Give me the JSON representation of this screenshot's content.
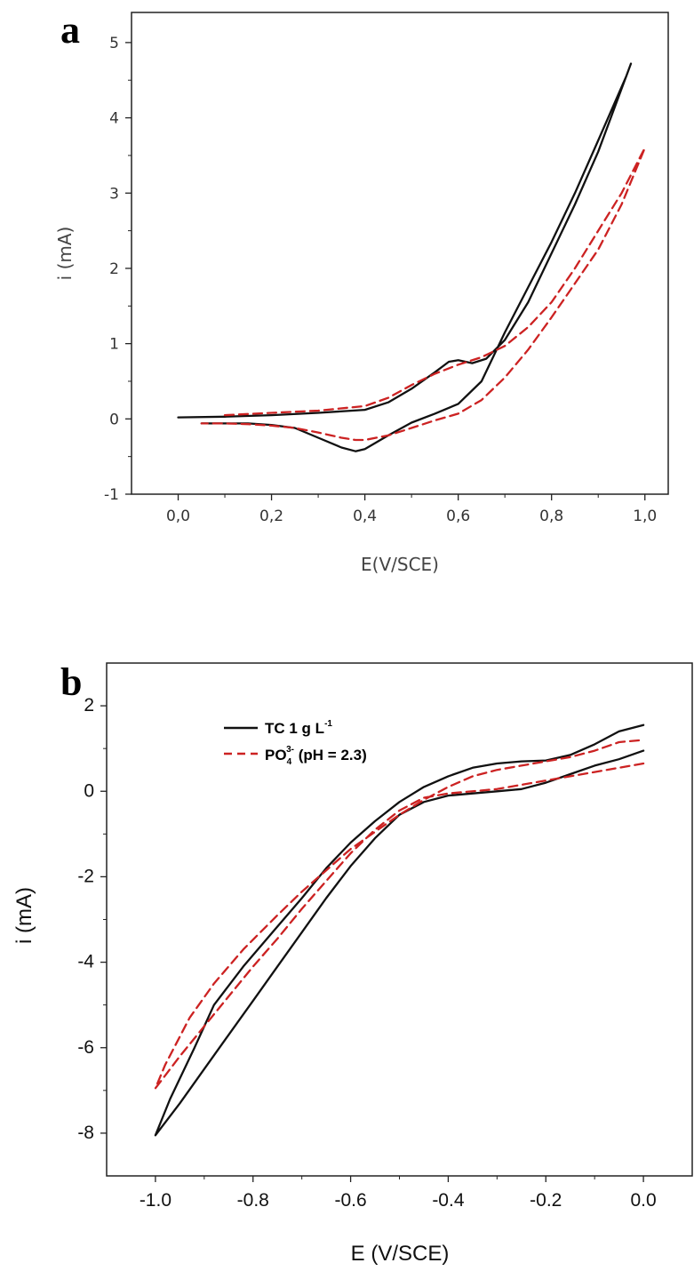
{
  "chart_data": [
    {
      "panel": "a",
      "type": "line",
      "xlabel": "E(V/SCE)",
      "ylabel": "i (mA)",
      "xlim": [
        -0.1,
        1.05
      ],
      "ylim": [
        -1,
        5.4
      ],
      "xticks": [
        "0,0",
        "0,2",
        "0,4",
        "0,6",
        "0,8",
        "1,0"
      ],
      "xtick_values": [
        0.0,
        0.2,
        0.4,
        0.6,
        0.8,
        1.0
      ],
      "yticks": [
        "-1",
        "0",
        "1",
        "2",
        "3",
        "4",
        "5"
      ],
      "ytick_values": [
        -1,
        0,
        1,
        2,
        3,
        4,
        5
      ],
      "series": [
        {
          "color": "#111111",
          "dash": "solid",
          "x": [
            0.0,
            0.1,
            0.2,
            0.3,
            0.4,
            0.45,
            0.5,
            0.55,
            0.58,
            0.6,
            0.63,
            0.66,
            0.7,
            0.75,
            0.8,
            0.85,
            0.9,
            0.97,
            0.96,
            0.9,
            0.85,
            0.8,
            0.75,
            0.7,
            0.65,
            0.6,
            0.55,
            0.5,
            0.45,
            0.4,
            0.38,
            0.35,
            0.3,
            0.25,
            0.2,
            0.15,
            0.1,
            0.05
          ],
          "y": [
            0.02,
            0.03,
            0.05,
            0.08,
            0.12,
            0.22,
            0.4,
            0.62,
            0.76,
            0.78,
            0.74,
            0.8,
            1.05,
            1.55,
            2.2,
            2.85,
            3.55,
            4.72,
            4.55,
            3.7,
            3.0,
            2.35,
            1.75,
            1.15,
            0.5,
            0.2,
            0.07,
            -0.05,
            -0.22,
            -0.4,
            -0.43,
            -0.38,
            -0.25,
            -0.12,
            -0.08,
            -0.06,
            -0.06,
            -0.06
          ]
        },
        {
          "color": "#cc2222",
          "dash": "dashed",
          "x": [
            0.1,
            0.2,
            0.3,
            0.4,
            0.45,
            0.5,
            0.55,
            0.6,
            0.65,
            0.7,
            0.75,
            0.8,
            0.85,
            0.9,
            0.95,
            1.0,
            0.99,
            0.95,
            0.9,
            0.85,
            0.8,
            0.75,
            0.7,
            0.65,
            0.6,
            0.55,
            0.5,
            0.45,
            0.4,
            0.38,
            0.35,
            0.3,
            0.25,
            0.2,
            0.15,
            0.1,
            0.05
          ],
          "y": [
            0.05,
            0.08,
            0.11,
            0.17,
            0.28,
            0.45,
            0.6,
            0.72,
            0.82,
            0.97,
            1.22,
            1.55,
            2.0,
            2.5,
            3.0,
            3.6,
            3.45,
            2.85,
            2.25,
            1.8,
            1.35,
            0.92,
            0.55,
            0.25,
            0.07,
            -0.02,
            -0.12,
            -0.22,
            -0.28,
            -0.28,
            -0.25,
            -0.18,
            -0.12,
            -0.09,
            -0.07,
            -0.06,
            -0.06
          ]
        }
      ]
    },
    {
      "panel": "b",
      "type": "line",
      "xlabel": "E (V/SCE)",
      "ylabel": "i (mA)",
      "xlim": [
        -1.1,
        0.1
      ],
      "ylim": [
        -9,
        3
      ],
      "xticks": [
        "-1.0",
        "-0.8",
        "-0.6",
        "-0.4",
        "-0.2",
        "0.0"
      ],
      "xtick_values": [
        -1.0,
        -0.8,
        -0.6,
        -0.4,
        -0.2,
        0.0
      ],
      "yticks": [
        "-8",
        "-6",
        "-4",
        "-2",
        "0",
        "2"
      ],
      "ytick_values": [
        -8,
        -6,
        -4,
        -2,
        0,
        2
      ],
      "legend_position": "top-left",
      "series": [
        {
          "name": "TC 1 g L",
          "name_sup": "-1",
          "color": "#111111",
          "dash": "solid",
          "x": [
            0.0,
            -0.05,
            -0.1,
            -0.15,
            -0.2,
            -0.25,
            -0.3,
            -0.35,
            -0.4,
            -0.45,
            -0.5,
            -0.55,
            -0.6,
            -0.65,
            -0.7,
            -0.75,
            -0.8,
            -0.85,
            -0.9,
            -0.95,
            -1.0,
            -0.97,
            -0.92,
            -0.88,
            -0.82,
            -0.76,
            -0.7,
            -0.65,
            -0.6,
            -0.55,
            -0.5,
            -0.45,
            -0.4,
            -0.35,
            -0.3,
            -0.25,
            -0.2,
            -0.15,
            -0.1,
            -0.05,
            0.0
          ],
          "y": [
            0.95,
            0.75,
            0.6,
            0.4,
            0.2,
            0.05,
            0.0,
            -0.05,
            -0.1,
            -0.25,
            -0.55,
            -1.1,
            -1.75,
            -2.5,
            -3.3,
            -4.1,
            -4.9,
            -5.7,
            -6.5,
            -7.3,
            -8.05,
            -7.2,
            -6.0,
            -5.0,
            -4.1,
            -3.3,
            -2.5,
            -1.8,
            -1.2,
            -0.7,
            -0.25,
            0.1,
            0.35,
            0.55,
            0.65,
            0.7,
            0.72,
            0.85,
            1.1,
            1.4,
            1.55
          ]
        },
        {
          "name": "PO",
          "name_sub": "4",
          "name_sup": "3-",
          "name_suffix": " (pH = 2.3)",
          "color": "#cc2222",
          "dash": "dashed",
          "x": [
            0.0,
            -0.05,
            -0.1,
            -0.2,
            -0.3,
            -0.4,
            -0.45,
            -0.5,
            -0.55,
            -0.6,
            -0.65,
            -0.7,
            -0.75,
            -0.8,
            -0.85,
            -0.9,
            -0.95,
            -1.0,
            -0.98,
            -0.93,
            -0.88,
            -0.82,
            -0.75,
            -0.7,
            -0.65,
            -0.6,
            -0.55,
            -0.5,
            -0.45,
            -0.4,
            -0.35,
            -0.3,
            -0.25,
            -0.2,
            -0.15,
            -0.1,
            -0.05,
            0.0
          ],
          "y": [
            0.65,
            0.55,
            0.45,
            0.25,
            0.05,
            -0.05,
            -0.15,
            -0.45,
            -0.9,
            -1.45,
            -2.1,
            -2.75,
            -3.45,
            -4.1,
            -4.8,
            -5.5,
            -6.2,
            -6.95,
            -6.4,
            -5.3,
            -4.5,
            -3.7,
            -2.9,
            -2.35,
            -1.85,
            -1.35,
            -0.95,
            -0.55,
            -0.2,
            0.1,
            0.35,
            0.5,
            0.6,
            0.7,
            0.8,
            0.95,
            1.15,
            1.2
          ]
        }
      ]
    }
  ]
}
